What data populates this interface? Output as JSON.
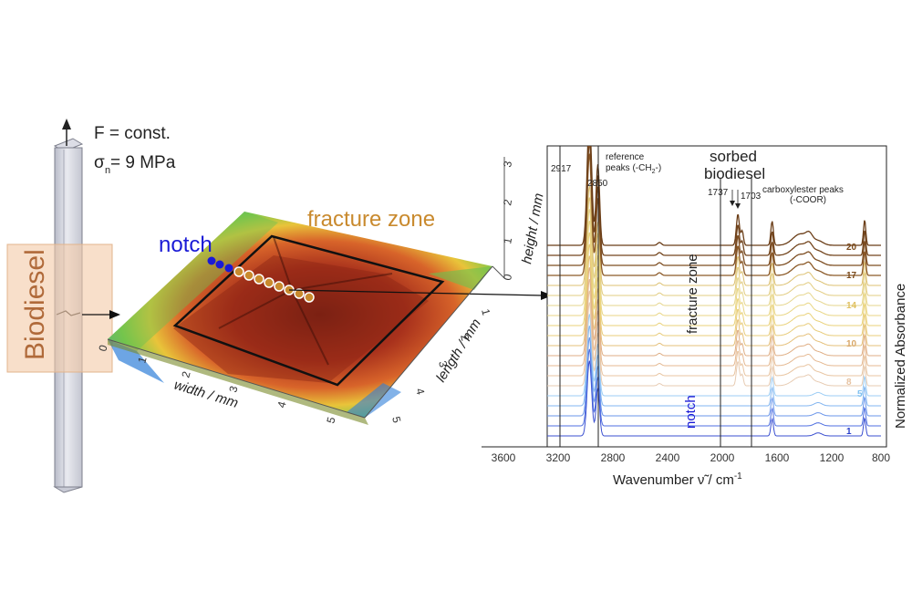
{
  "specimen": {
    "force_label": "F = const.",
    "stress_label": "σ",
    "stress_sub": "n",
    "stress_value": " = 9 MPa",
    "medium_label": "Biodiesel"
  },
  "surface": {
    "notch_label": "notch",
    "fracture_label": "fracture zone",
    "width_axis": "width / mm",
    "length_axis": "length / mm",
    "height_axis": "height / mm",
    "width_ticks": [
      "0",
      "1",
      "2",
      "3",
      "4",
      "5"
    ],
    "length_ticks": [
      "1",
      "2",
      "3",
      "4",
      "5"
    ],
    "height_ticks": [
      "0",
      "1",
      "2",
      "3"
    ],
    "colors": {
      "notch": "#1a1ad6",
      "fracture": "#c98a2e",
      "high": "#9c2a1a",
      "low": "#2a7ad9"
    }
  },
  "spectra": {
    "xlabel_prefix": "Wavenumber ",
    "xlabel_symbol": "ν̃",
    "xlabel_suffix": " / cm",
    "xlabel_exp": "-1",
    "ylabel": "Normalized Absorbance",
    "x_ticks": [
      "3600",
      "3200",
      "2800",
      "2400",
      "2000",
      "1600",
      "1200",
      "800"
    ],
    "sorbed_label_line1": "sorbed",
    "sorbed_label_line2": "biodiesel",
    "reference_label_line1": "reference",
    "reference_label_line2": "peaks (-CH",
    "reference_sub": "2",
    "reference_tail": "-)",
    "carboxyl_label_line1": "carboxylester peaks",
    "carboxyl_label_line2": "(-COOR)",
    "fracture_zone_label": "fracture zone",
    "notch_label": "notch",
    "peak_2917": "2917",
    "peak_2850": "2850",
    "peak_1737": "1737",
    "peak_1703": "1703",
    "spectrum_numbers": [
      {
        "label": "20",
        "color": "#7a4a1c"
      },
      {
        "label": "17",
        "color": "#7a4a1c"
      },
      {
        "label": "14",
        "color": "#e0c060"
      },
      {
        "label": "10",
        "color": "#d9a86a"
      },
      {
        "label": "8",
        "color": "#e6c2a0"
      },
      {
        "label": "5",
        "color": "#7fc0f0"
      },
      {
        "label": "1",
        "color": "#2a3fc9"
      }
    ]
  },
  "chart_data": {
    "type": "line",
    "xlabel": "Wavenumber ν̃ / cm-1",
    "ylabel": "Normalized Absorbance",
    "xlim": [
      3600,
      600
    ],
    "x_ticks": [
      3600,
      3200,
      2800,
      2400,
      2000,
      1600,
      1200,
      800
    ],
    "annotated_peaks": [
      2917,
      2850,
      1737,
      1703
    ],
    "series_count": 20,
    "labeled_series": [
      "1",
      "5",
      "8",
      "10",
      "14",
      "17",
      "20"
    ]
  }
}
